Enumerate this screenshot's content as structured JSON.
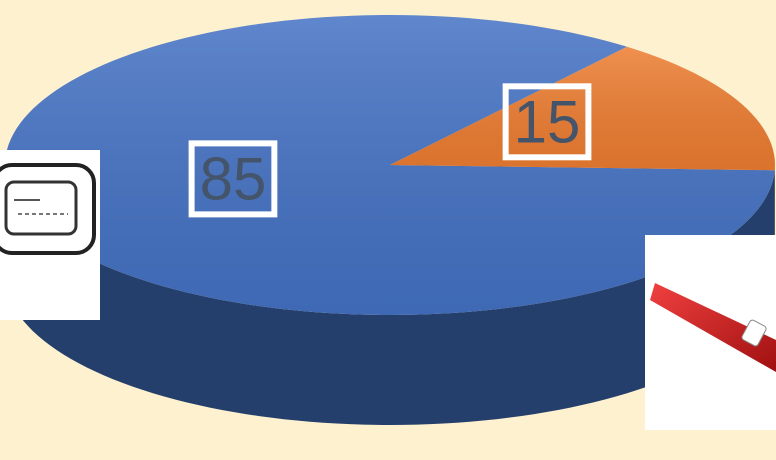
{
  "chart_data": {
    "type": "pie",
    "values": [
      85,
      15
    ],
    "colors": [
      "#4472c4",
      "#ed7d31"
    ]
  }
}
